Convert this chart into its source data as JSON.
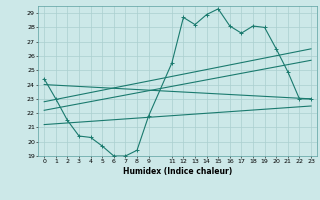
{
  "xlabel": "Humidex (Indice chaleur)",
  "bg_color": "#cce8e8",
  "grid_color": "#aacfcf",
  "line_color": "#1a7a6e",
  "xlim": [
    -0.5,
    23.5
  ],
  "ylim": [
    19,
    29.5
  ],
  "xticks": [
    0,
    1,
    2,
    3,
    4,
    5,
    6,
    7,
    8,
    9,
    11,
    12,
    13,
    14,
    15,
    16,
    17,
    18,
    19,
    20,
    21,
    22,
    23
  ],
  "yticks": [
    19,
    20,
    21,
    22,
    23,
    24,
    25,
    26,
    27,
    28,
    29
  ],
  "line1_x": [
    0,
    1,
    2,
    3,
    4,
    5,
    6,
    7,
    8,
    9,
    11,
    12,
    13,
    14,
    15,
    16,
    17,
    18,
    19,
    20,
    21,
    22,
    23
  ],
  "line1_y": [
    24.4,
    23.0,
    21.5,
    20.4,
    20.3,
    19.7,
    19.0,
    19.0,
    19.4,
    21.8,
    25.5,
    28.7,
    28.2,
    28.9,
    29.3,
    28.1,
    27.6,
    28.1,
    28.0,
    26.5,
    24.9,
    23.0,
    23.0
  ],
  "line2_x": [
    0,
    23
  ],
  "line2_y": [
    24.0,
    23.0
  ],
  "line3_x": [
    0,
    23
  ],
  "line3_y": [
    22.8,
    26.5
  ],
  "line4_x": [
    0,
    23
  ],
  "line4_y": [
    22.2,
    25.7
  ],
  "line5_x": [
    0,
    23
  ],
  "line5_y": [
    21.2,
    22.5
  ]
}
